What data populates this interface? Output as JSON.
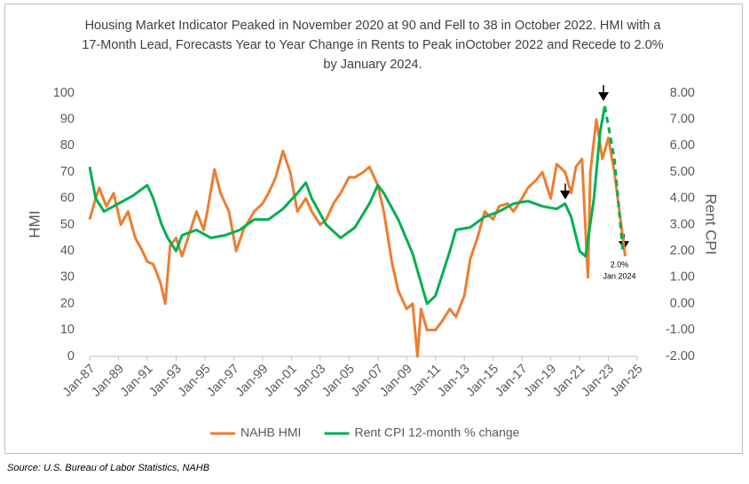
{
  "chart_data": {
    "type": "line",
    "title": "Housing Market Indicator Peaked in November 2020 at 90 and Fell to 38 in October 2022. HMI with a 17-Month Lead, Forecasts Year to Year Change in Rents to Peak inOctober 2022 and Recede to 2.0% by January 2024.",
    "y_label": "HMI",
    "y2_label": "Rent CPI",
    "source": "Source: U.S. Bureau of Labor Statistics, NAHB",
    "annotations": [
      "2.0%",
      "Jan 2024"
    ],
    "xlim": [
      "1987-01",
      "2025-01"
    ],
    "xticks": [
      {
        "value": "1987-01",
        "label": "Jan-87"
      },
      {
        "value": "1989-01",
        "label": "Jan-89"
      },
      {
        "value": "1991-01",
        "label": "Jan-91"
      },
      {
        "value": "1993-01",
        "label": "Jan-93"
      },
      {
        "value": "1995-01",
        "label": "Jan-95"
      },
      {
        "value": "1997-01",
        "label": "Jan-97"
      },
      {
        "value": "1999-01",
        "label": "Jan-99"
      },
      {
        "value": "2001-01",
        "label": "Jan-01"
      },
      {
        "value": "2003-01",
        "label": "Jan-03"
      },
      {
        "value": "2005-01",
        "label": "Jan-05"
      },
      {
        "value": "2007-01",
        "label": "Jan-07"
      },
      {
        "value": "2009-01",
        "label": "Jan-09"
      },
      {
        "value": "2011-01",
        "label": "Jan-11"
      },
      {
        "value": "2013-01",
        "label": "Jan-13"
      },
      {
        "value": "2015-01",
        "label": "Jan-15"
      },
      {
        "value": "2017-01",
        "label": "Jan-17"
      },
      {
        "value": "2019-01",
        "label": "Jan-19"
      },
      {
        "value": "2021-01",
        "label": "Jan-21"
      },
      {
        "value": "2023-01",
        "label": "Jan-23"
      },
      {
        "value": "2025-01",
        "label": "Jan-25"
      }
    ],
    "ylim": [
      0,
      100
    ],
    "yticks": [
      0,
      10,
      20,
      30,
      40,
      50,
      60,
      70,
      80,
      90,
      100
    ],
    "y2lim": [
      -2,
      8
    ],
    "y2ticks": [
      {
        "value": -2,
        "label": "-2.00"
      },
      {
        "value": -1,
        "label": "-1.00"
      },
      {
        "value": 0,
        "label": "0.00"
      },
      {
        "value": 1,
        "label": "1.00"
      },
      {
        "value": 2,
        "label": "2.00"
      },
      {
        "value": 3,
        "label": "3.00"
      },
      {
        "value": 4,
        "label": "4.00"
      },
      {
        "value": 5,
        "label": "5.00"
      },
      {
        "value": 6,
        "label": "6.00"
      },
      {
        "value": 7,
        "label": "7.00"
      },
      {
        "value": 8,
        "label": "8.00"
      }
    ],
    "series": [
      {
        "name": "NAHB HMI",
        "color": "#ed7d31",
        "x": [
          "1987-01",
          "1987-06",
          "1987-09",
          "1988-03",
          "1988-09",
          "1989-03",
          "1989-09",
          "1990-03",
          "1990-09",
          "1991-01",
          "1991-06",
          "1991-12",
          "1992-04",
          "1992-08",
          "1993-01",
          "1993-06",
          "1994-01",
          "1994-06",
          "1994-12",
          "1995-03",
          "1995-09",
          "1996-02",
          "1996-09",
          "1997-03",
          "1997-09",
          "1998-06",
          "1999-01",
          "1999-06",
          "1999-12",
          "2000-06",
          "2000-12",
          "2001-06",
          "2002-01",
          "2002-06",
          "2003-01",
          "2003-06",
          "2003-12",
          "2004-06",
          "2005-01",
          "2005-06",
          "2006-01",
          "2006-06",
          "2007-01",
          "2007-06",
          "2008-01",
          "2008-06",
          "2009-01",
          "2009-06",
          "2009-10",
          "2010-01",
          "2010-06",
          "2011-01",
          "2011-06",
          "2012-01",
          "2012-06",
          "2013-01",
          "2013-06",
          "2013-12",
          "2014-06",
          "2015-01",
          "2015-06",
          "2016-01",
          "2016-06",
          "2017-01",
          "2017-06",
          "2018-01",
          "2018-06",
          "2019-01",
          "2019-06",
          "2020-01",
          "2020-06",
          "2020-10",
          "2021-03",
          "2021-08",
          "2021-10",
          "2022-03",
          "2022-08",
          "2023-01",
          "2023-06",
          "2024-03"
        ],
        "values": [
          52,
          60,
          64,
          57,
          62,
          50,
          55,
          45,
          40,
          36,
          35,
          28,
          20,
          42,
          45,
          38,
          48,
          55,
          48,
          55,
          71,
          62,
          55,
          40,
          48,
          55,
          58,
          62,
          68,
          78,
          70,
          55,
          60,
          55,
          50,
          52,
          58,
          62,
          68,
          68,
          70,
          72,
          65,
          55,
          35,
          25,
          18,
          20,
          0,
          18,
          10,
          10,
          13,
          18,
          15,
          23,
          37,
          45,
          55,
          52,
          57,
          58,
          55,
          60,
          64,
          67,
          70,
          60,
          73,
          70,
          62,
          72,
          75,
          30,
          70,
          90,
          75,
          83,
          70,
          38
        ]
      },
      {
        "name": "Rent CPI 12-month % change",
        "color": "#00b050",
        "axis": "y2",
        "x": [
          "1987-01",
          "1987-06",
          "1988-01",
          "1989-01",
          "1990-01",
          "1991-01",
          "1991-06",
          "1992-01",
          "1992-06",
          "1993-01",
          "1993-06",
          "1994-06",
          "1995-06",
          "1996-06",
          "1997-06",
          "1998-06",
          "1999-06",
          "2000-06",
          "2001-06",
          "2002-01",
          "2002-06",
          "2003-06",
          "2004-06",
          "2005-06",
          "2006-06",
          "2007-01",
          "2007-06",
          "2008-06",
          "2009-06",
          "2010-06",
          "2011-01",
          "2011-06",
          "2012-01",
          "2012-06",
          "2013-06",
          "2014-06",
          "2015-06",
          "2016-06",
          "2017-06",
          "2018-06",
          "2019-06",
          "2020-01",
          "2020-06",
          "2021-01",
          "2021-06",
          "2022-01",
          "2022-06",
          "2022-10"
        ],
        "values": [
          5.2,
          4.0,
          3.5,
          3.8,
          4.1,
          4.5,
          4.0,
          3.0,
          2.5,
          2.0,
          2.6,
          2.8,
          2.5,
          2.6,
          2.8,
          3.2,
          3.2,
          3.6,
          4.2,
          4.6,
          4.0,
          3.0,
          2.5,
          2.9,
          3.8,
          4.5,
          4.2,
          3.2,
          1.9,
          0.0,
          0.3,
          1.0,
          2.0,
          2.8,
          2.9,
          3.3,
          3.5,
          3.8,
          3.9,
          3.7,
          3.6,
          3.8,
          3.3,
          2.0,
          1.8,
          4.0,
          6.5,
          7.5
        ],
        "forecast": {
          "x": [
            "2022-10",
            "2023-06",
            "2024-01"
          ],
          "values": [
            7.5,
            5.5,
            2.0
          ]
        }
      }
    ]
  }
}
